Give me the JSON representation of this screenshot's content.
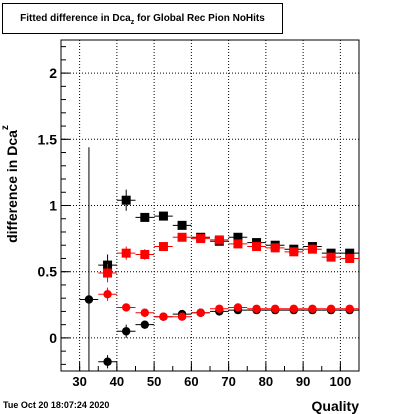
{
  "chart_data": {
    "type": "scatter",
    "title": "Fitted difference in Dca",
    "title_subscript": "z",
    "title_suffix": " for Global Rec Pion NoHits",
    "xlabel": "Quality",
    "ylabel": "difference in Dca",
    "ylabel_subscript": "z",
    "xlim": [
      25,
      105
    ],
    "ylim": [
      -0.25,
      2.25
    ],
    "xticks": [
      30,
      40,
      50,
      60,
      70,
      80,
      90,
      100
    ],
    "yticks": [
      0,
      0.5,
      1,
      1.5,
      2
    ],
    "ytick_labels": [
      "0",
      "0.5",
      "1",
      "1.5",
      "2"
    ],
    "grid": true,
    "legend": "none",
    "series": [
      {
        "marker": "square",
        "color": "#000000",
        "points": [
          {
            "x": 37.5,
            "y": 0.55,
            "yerr": 0.08
          },
          {
            "x": 42.5,
            "y": 1.04,
            "yerr": 0.08
          },
          {
            "x": 47.5,
            "y": 0.91,
            "yerr": 0.03
          },
          {
            "x": 52.5,
            "y": 0.92,
            "yerr": 0.02
          },
          {
            "x": 57.5,
            "y": 0.85,
            "yerr": 0.02
          },
          {
            "x": 62.5,
            "y": 0.76,
            "yerr": 0.02
          },
          {
            "x": 67.5,
            "y": 0.73,
            "yerr": 0.02
          },
          {
            "x": 72.5,
            "y": 0.76,
            "yerr": 0.02
          },
          {
            "x": 77.5,
            "y": 0.72,
            "yerr": 0.02
          },
          {
            "x": 82.5,
            "y": 0.7,
            "yerr": 0.02
          },
          {
            "x": 87.5,
            "y": 0.67,
            "yerr": 0.02
          },
          {
            "x": 92.5,
            "y": 0.69,
            "yerr": 0.02
          },
          {
            "x": 97.5,
            "y": 0.64,
            "yerr": 0.02
          },
          {
            "x": 102.5,
            "y": 0.64,
            "yerr": 0.02
          }
        ]
      },
      {
        "marker": "square",
        "color": "#ff0000",
        "points": [
          {
            "x": 37.5,
            "y": 0.49,
            "yerr": 0.07
          },
          {
            "x": 42.5,
            "y": 0.64,
            "yerr": 0.05
          },
          {
            "x": 47.5,
            "y": 0.63,
            "yerr": 0.04
          },
          {
            "x": 52.5,
            "y": 0.69,
            "yerr": 0.03
          },
          {
            "x": 57.5,
            "y": 0.76,
            "yerr": 0.02
          },
          {
            "x": 62.5,
            "y": 0.75,
            "yerr": 0.02
          },
          {
            "x": 67.5,
            "y": 0.74,
            "yerr": 0.02
          },
          {
            "x": 72.5,
            "y": 0.71,
            "yerr": 0.02
          },
          {
            "x": 77.5,
            "y": 0.69,
            "yerr": 0.02
          },
          {
            "x": 82.5,
            "y": 0.68,
            "yerr": 0.02
          },
          {
            "x": 87.5,
            "y": 0.65,
            "yerr": 0.02
          },
          {
            "x": 92.5,
            "y": 0.67,
            "yerr": 0.02
          },
          {
            "x": 97.5,
            "y": 0.61,
            "yerr": 0.02
          },
          {
            "x": 102.5,
            "y": 0.6,
            "yerr": 0.02
          }
        ]
      },
      {
        "marker": "circle",
        "color": "#000000",
        "points": [
          {
            "x": 32.5,
            "y": 0.29,
            "yerr": 1.15
          },
          {
            "x": 37.5,
            "y": -0.18,
            "yerr": 0.05
          },
          {
            "x": 42.5,
            "y": 0.05,
            "yerr": 0.05
          },
          {
            "x": 47.5,
            "y": 0.1,
            "yerr": 0.03
          },
          {
            "x": 52.5,
            "y": 0.16,
            "yerr": 0.02
          },
          {
            "x": 57.5,
            "y": 0.18,
            "yerr": 0.02
          },
          {
            "x": 62.5,
            "y": 0.19,
            "yerr": 0.02
          },
          {
            "x": 67.5,
            "y": 0.2,
            "yerr": 0.02
          },
          {
            "x": 72.5,
            "y": 0.21,
            "yerr": 0.02
          },
          {
            "x": 77.5,
            "y": 0.21,
            "yerr": 0.02
          },
          {
            "x": 82.5,
            "y": 0.21,
            "yerr": 0.02
          },
          {
            "x": 87.5,
            "y": 0.21,
            "yerr": 0.02
          },
          {
            "x": 92.5,
            "y": 0.21,
            "yerr": 0.02
          },
          {
            "x": 97.5,
            "y": 0.21,
            "yerr": 0.02
          },
          {
            "x": 102.5,
            "y": 0.21,
            "yerr": 0.02
          }
        ]
      },
      {
        "marker": "circle",
        "color": "#ff0000",
        "points": [
          {
            "x": 37.5,
            "y": 0.33,
            "yerr": 0.05
          },
          {
            "x": 42.5,
            "y": 0.23,
            "yerr": 0.03
          },
          {
            "x": 47.5,
            "y": 0.19,
            "yerr": 0.02
          },
          {
            "x": 52.5,
            "y": 0.16,
            "yerr": 0.02
          },
          {
            "x": 57.5,
            "y": 0.16,
            "yerr": 0.02
          },
          {
            "x": 62.5,
            "y": 0.19,
            "yerr": 0.02
          },
          {
            "x": 67.5,
            "y": 0.22,
            "yerr": 0.02
          },
          {
            "x": 72.5,
            "y": 0.23,
            "yerr": 0.02
          },
          {
            "x": 77.5,
            "y": 0.22,
            "yerr": 0.02
          },
          {
            "x": 82.5,
            "y": 0.22,
            "yerr": 0.02
          },
          {
            "x": 87.5,
            "y": 0.22,
            "yerr": 0.02
          },
          {
            "x": 92.5,
            "y": 0.22,
            "yerr": 0.02
          },
          {
            "x": 97.5,
            "y": 0.22,
            "yerr": 0.02
          },
          {
            "x": 102.5,
            "y": 0.22,
            "yerr": 0.02
          }
        ]
      }
    ]
  },
  "footer": {
    "timestamp": "Tue Oct 20 18:07:24 2020"
  }
}
